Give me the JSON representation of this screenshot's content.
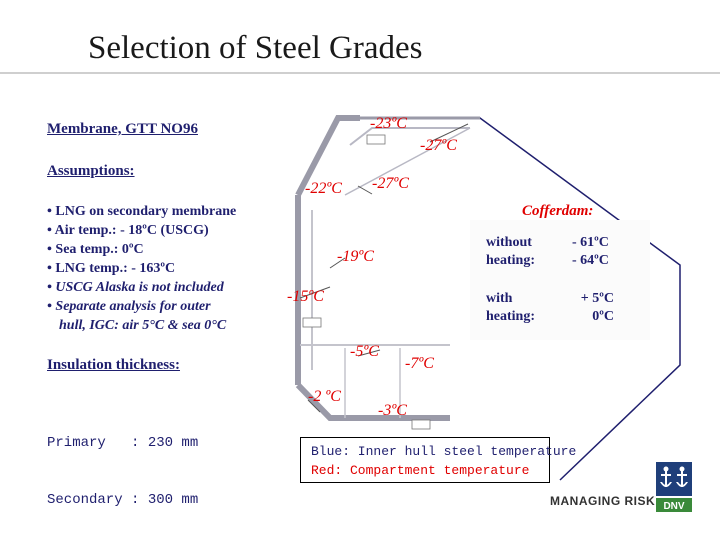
{
  "title": "Selection of Steel Grades",
  "membrane_heading": "Membrane, GTT NO96",
  "assumptions_heading": "Assumptions:",
  "assumptions": [
    "• LNG on secondary membrane",
    "• Air temp.: - 18ºC (USCG)",
    "• Sea temp.: 0ºC",
    "• LNG temp.: - 163ºC",
    "• USCG Alaska is not included",
    "• Separate analysis for outer",
    "hull, IGC: air 5°C & sea 0°C"
  ],
  "insulation_heading": "Insulation thickness:",
  "insulation_rows": [
    "Primary   : 230 mm",
    "Secondary : 300 mm"
  ],
  "temperatures": {
    "t1": "-23ºC",
    "t2": "-27ºC",
    "t3": "-22ºC",
    "t4": "-27ºC",
    "t5": "-19ºC",
    "t6": "-15ºC",
    "t7": "-5ºC",
    "t8": "-7ºC",
    "t9": "-2 ºC",
    "t10": "-3ºC"
  },
  "cofferdam": {
    "heading": "Cofferdam:",
    "without_label_1": "without",
    "without_label_2": "heating:",
    "without_val_1": "- 61ºC",
    "without_val_2": "- 64ºC",
    "with_label_1": "with",
    "with_label_2": "heating:",
    "with_val_1": "+ 5ºC",
    "with_val_2": "0ºC"
  },
  "legend": {
    "line1": "Blue: Inner hull steel temperature",
    "line2": "Red: Compartment temperature"
  },
  "footer": {
    "managing": "MANAGING RISK",
    "logo_text": "DNV"
  }
}
